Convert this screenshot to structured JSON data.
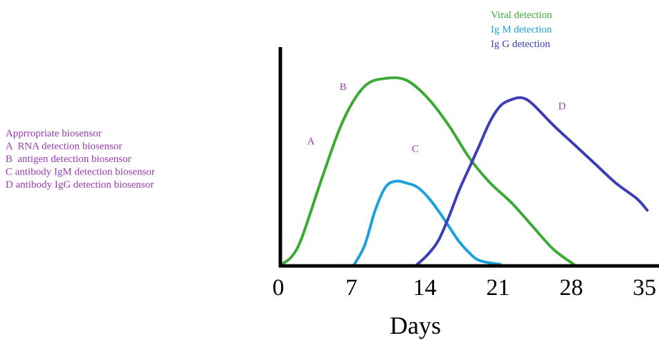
{
  "chart_data": {
    "type": "line",
    "title": "",
    "xlabel": "Days",
    "ylabel": "",
    "xlim": [
      0,
      35
    ],
    "ylim": [
      0,
      1
    ],
    "x_ticks": [
      "0",
      "7",
      "14",
      "21",
      "28",
      "35"
    ],
    "grid": false,
    "legend_position": "top-right",
    "series": [
      {
        "name": "Viral detection",
        "color": "#3aaa35",
        "points": [
          [
            0,
            0
          ],
          [
            1,
            0.04
          ],
          [
            2,
            0.14
          ],
          [
            4,
            0.46
          ],
          [
            6,
            0.75
          ],
          [
            8,
            0.92
          ],
          [
            10,
            0.96
          ],
          [
            12,
            0.95
          ],
          [
            14,
            0.86
          ],
          [
            16,
            0.72
          ],
          [
            18,
            0.55
          ],
          [
            20,
            0.42
          ],
          [
            22,
            0.32
          ],
          [
            24,
            0.2
          ],
          [
            26,
            0.08
          ],
          [
            28,
            0
          ]
        ]
      },
      {
        "name": "Ig M detection",
        "color": "#1ea0dc",
        "points": [
          [
            7,
            0
          ],
          [
            8,
            0.1
          ],
          [
            9,
            0.28
          ],
          [
            10,
            0.4
          ],
          [
            11,
            0.43
          ],
          [
            12,
            0.42
          ],
          [
            13,
            0.4
          ],
          [
            14,
            0.35
          ],
          [
            15,
            0.28
          ],
          [
            16,
            0.2
          ],
          [
            17,
            0.12
          ],
          [
            18,
            0.06
          ],
          [
            19,
            0.02
          ],
          [
            21,
            0
          ]
        ]
      },
      {
        "name": "Ig G detection",
        "color": "#3d3db8",
        "points": [
          [
            13,
            0
          ],
          [
            14,
            0.05
          ],
          [
            15,
            0.12
          ],
          [
            16,
            0.24
          ],
          [
            17,
            0.38
          ],
          [
            18,
            0.5
          ],
          [
            19,
            0.62
          ],
          [
            20,
            0.74
          ],
          [
            21,
            0.82
          ],
          [
            22,
            0.85
          ],
          [
            23,
            0.86
          ],
          [
            24,
            0.83
          ],
          [
            26,
            0.72
          ],
          [
            28,
            0.62
          ],
          [
            30,
            0.52
          ],
          [
            32,
            0.42
          ],
          [
            34,
            0.34
          ],
          [
            35,
            0.28
          ]
        ]
      }
    ],
    "annotations": [
      {
        "label": "A",
        "x": 2.5,
        "y": 0.62
      },
      {
        "label": "B",
        "x": 5.6,
        "y": 0.9
      },
      {
        "label": "C",
        "x": 12.5,
        "y": 0.58
      },
      {
        "label": "D",
        "x": 26.5,
        "y": 0.8
      }
    ]
  },
  "notes": [
    "Apprropriate biosensor",
    "A  RNA detection biosensor",
    "B  antigen detection biosensor",
    "C antibody IgM detection biosensor",
    "D antibody IgG detection biosensor"
  ]
}
